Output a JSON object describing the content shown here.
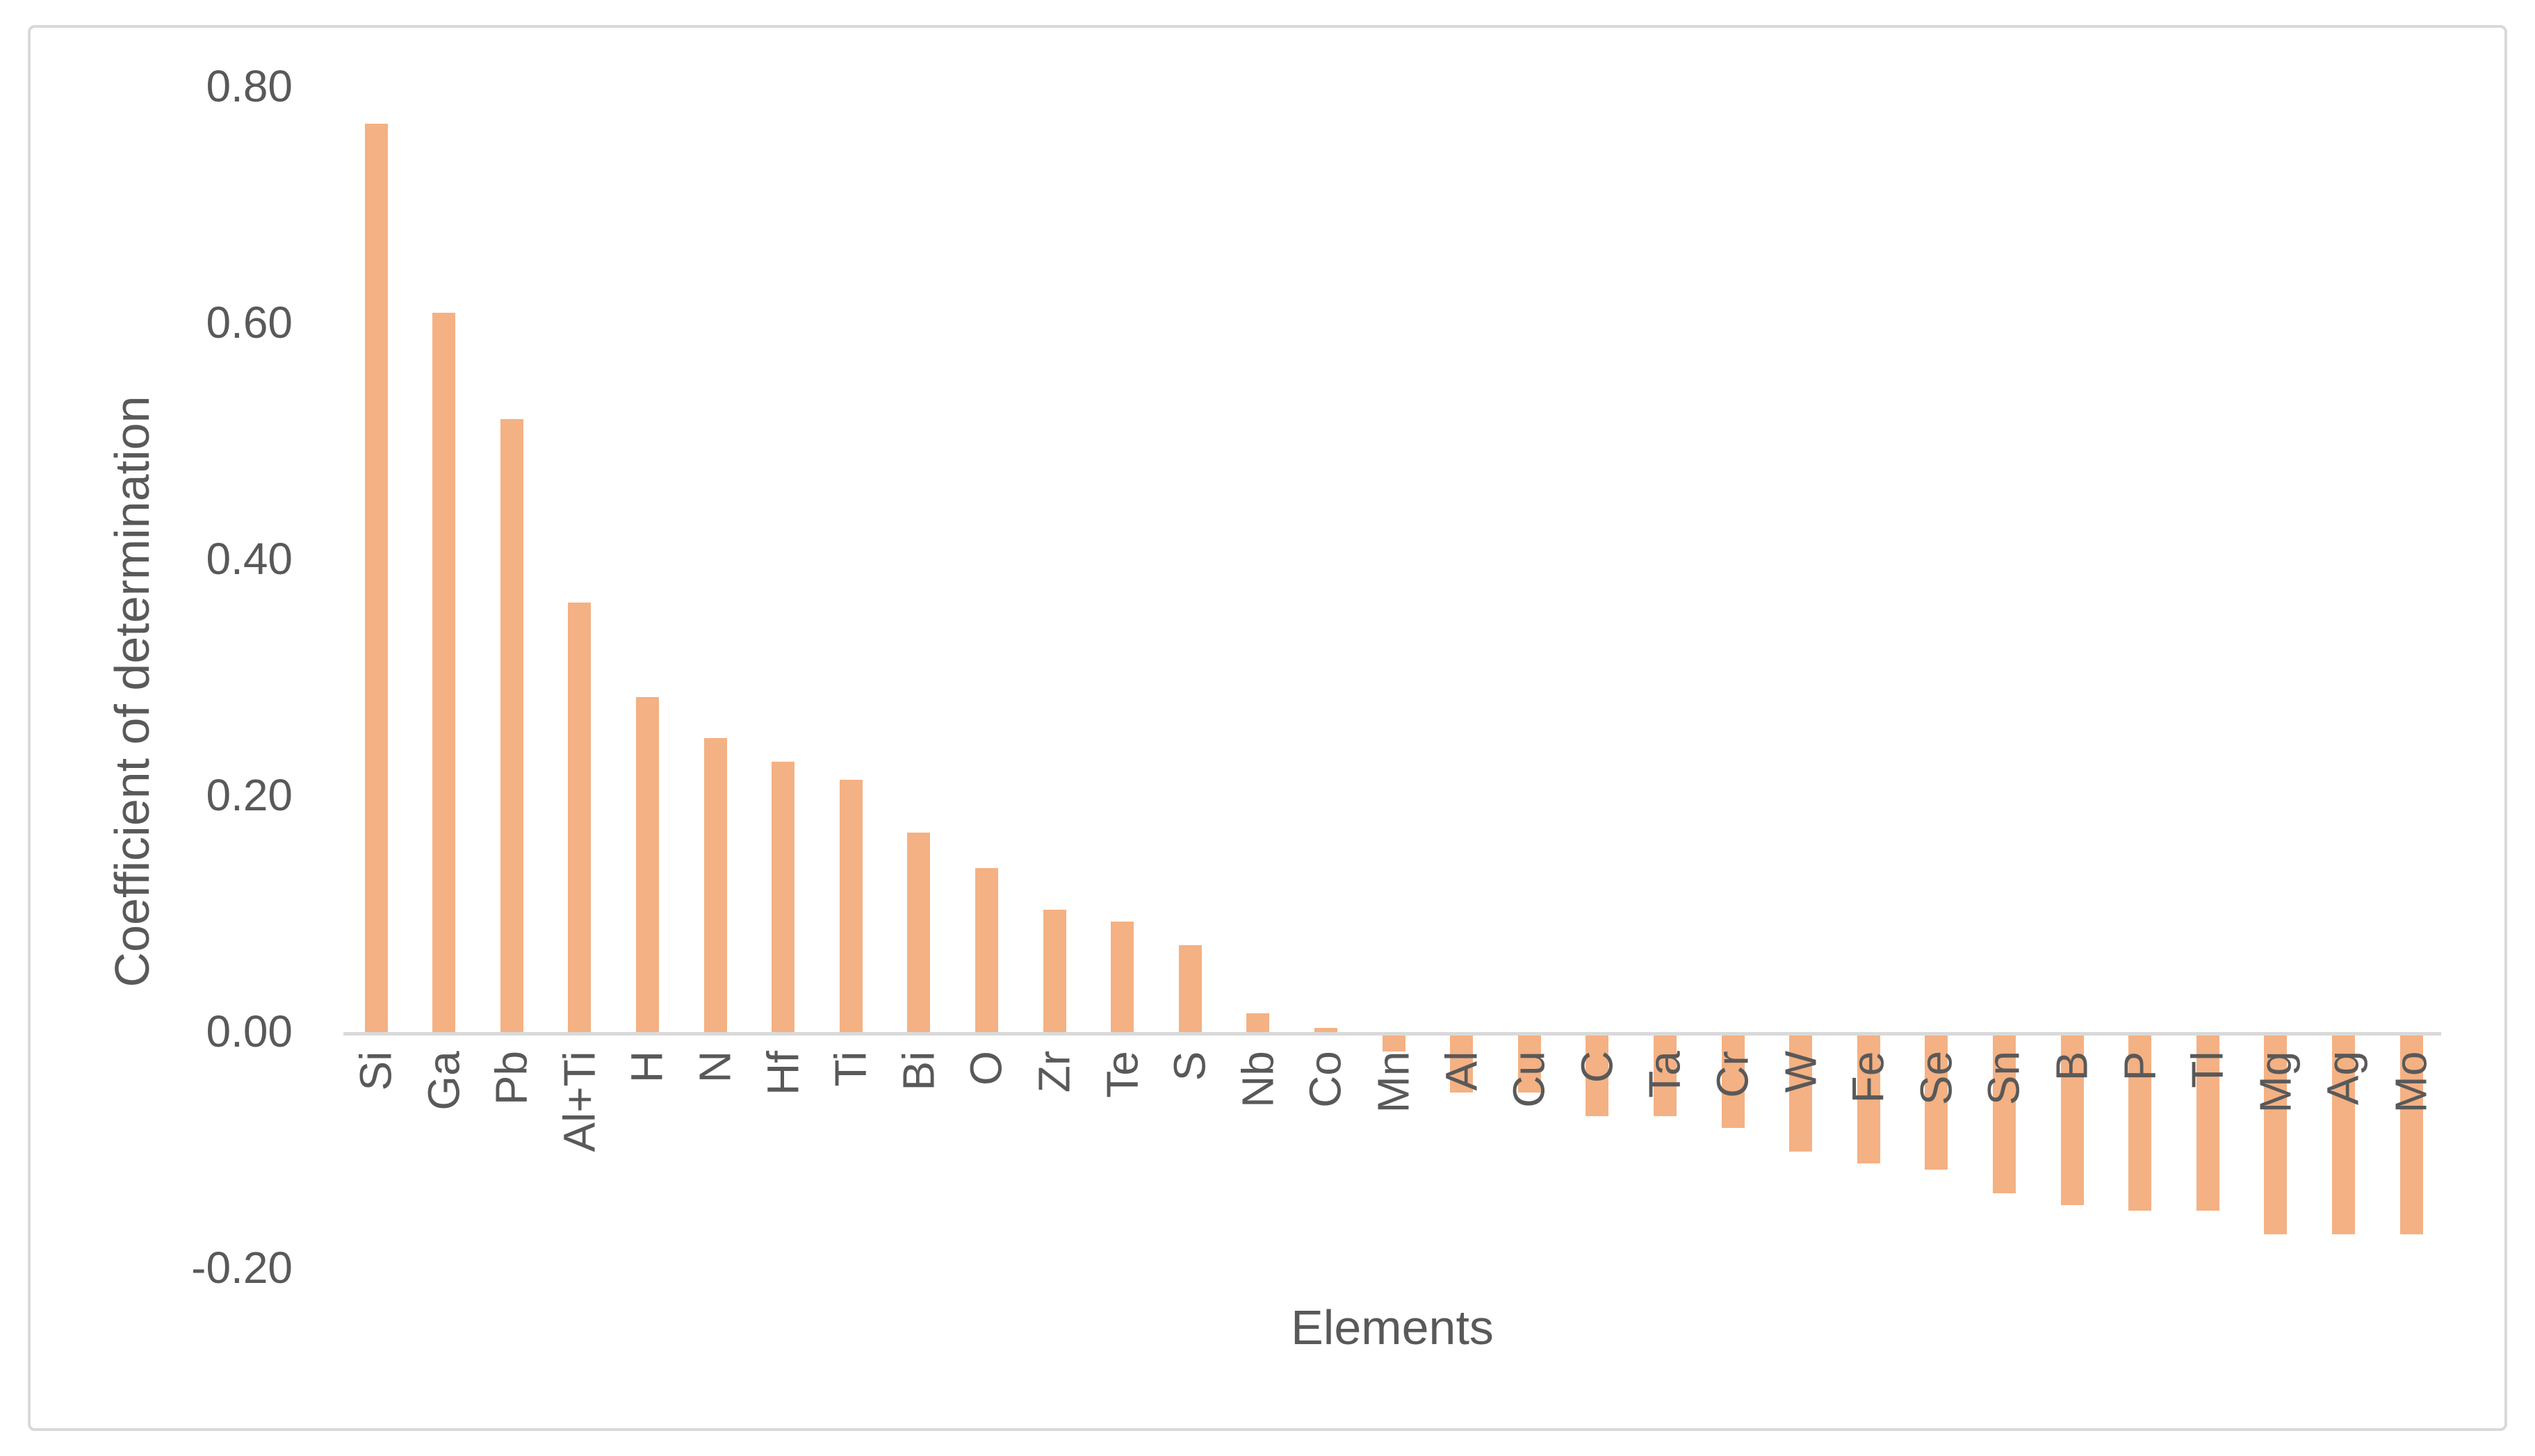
{
  "figure": {
    "background_color": "#FFFFFF",
    "border_color": "#D9D9D9"
  },
  "chart_data": {
    "type": "bar",
    "title": "",
    "xlabel": "Elements",
    "ylabel": "Coefficient of determination",
    "categories": [
      "Si",
      "Ga",
      "Pb",
      "Al+Ti",
      "H",
      "N",
      "Hf",
      "Ti",
      "Bi",
      "O",
      "Zr",
      "Te",
      "S",
      "Nb",
      "Co",
      "Mn",
      "Al",
      "Cu",
      "C",
      "Ta",
      "Cr",
      "W",
      "Fe",
      "Se",
      "Sn",
      "B",
      "P",
      "Tl",
      "Mg",
      "Ag",
      "Mo"
    ],
    "values": [
      0.77,
      0.61,
      0.52,
      0.365,
      0.285,
      0.25,
      0.23,
      0.215,
      0.17,
      0.14,
      0.105,
      0.095,
      0.075,
      0.017,
      0.005,
      -0.015,
      -0.05,
      -0.05,
      -0.07,
      -0.07,
      -0.08,
      -0.1,
      -0.11,
      -0.115,
      -0.135,
      -0.145,
      -0.15,
      -0.15,
      -0.17,
      -0.17,
      -0.17
    ],
    "ylim": [
      -0.2,
      0.8
    ],
    "yticks": [
      0.8,
      0.6,
      0.4,
      0.2,
      0.0,
      -0.2
    ],
    "ytick_labels": [
      "0.80",
      "0.60",
      "0.40",
      "0.20",
      "0.00",
      "-0.20"
    ],
    "grid": false,
    "legend": "none",
    "bar_color": "#F4B183",
    "axis_line_color": "#D9D9D9",
    "text_color": "#595959",
    "category_labels_rotation_deg": -90
  }
}
